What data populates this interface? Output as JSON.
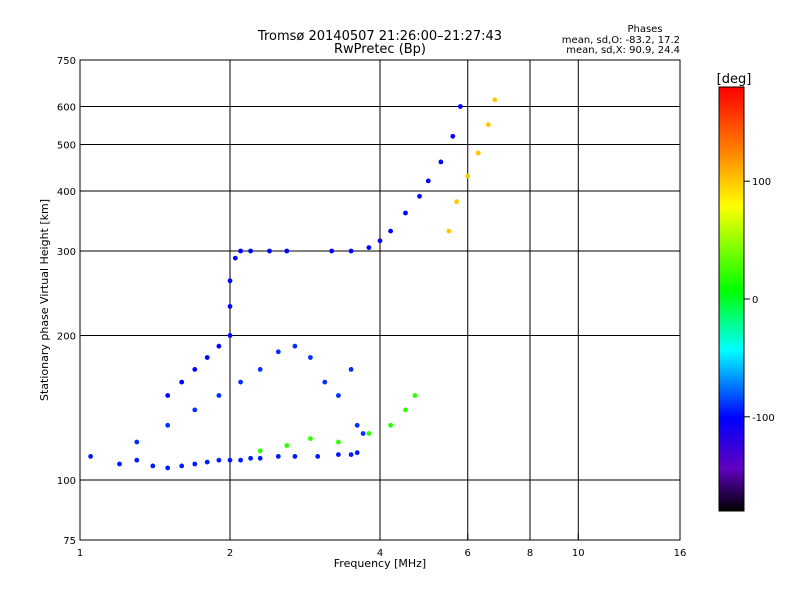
{
  "header": {
    "title_line1": "Tromsø 20140507 21:26:00–21:27:43",
    "title_line2": "RwPretec (Bp)",
    "phases_title": "Phases",
    "phases_line1": "mean, sd,O: -83.2, 17.2",
    "phases_line2": "mean, sd,X:  90.9, 24.4"
  },
  "chart_data": {
    "type": "scatter",
    "xlabel": "Frequency [MHz]",
    "ylabel": "Stationary phase Virtual Height [km]",
    "x_scale": "log",
    "y_scale": "log",
    "xlim": [
      1,
      16
    ],
    "ylim": [
      75,
      750
    ],
    "x_ticks": [
      1,
      2,
      4,
      6,
      8,
      10,
      16
    ],
    "x_tick_labels": [
      "1",
      "2",
      "4",
      "6",
      "8",
      "10",
      "16"
    ],
    "x_grid": [
      2,
      4,
      6,
      8,
      10
    ],
    "y_ticks": [
      75,
      100,
      200,
      300,
      400,
      500,
      600,
      750
    ],
    "y_tick_labels": [
      "75",
      "100",
      "200",
      "300",
      "400",
      "500",
      "600",
      "750"
    ],
    "y_grid": [
      100,
      200,
      300,
      400,
      500,
      600
    ],
    "grid": true,
    "colorbar": {
      "label": "[deg]",
      "range": [
        -180,
        180
      ],
      "ticks": [
        100,
        0,
        -100
      ],
      "tick_labels": [
        "100",
        "0",
        "-100"
      ],
      "colors": [
        "#ff0000",
        "#ff8000",
        "#ffff00",
        "#00ff00",
        "#00ffff",
        "#0000ff",
        "#6000c0",
        "#000000"
      ]
    },
    "series": [
      {
        "kind": "O-trace-low",
        "phase": -95,
        "points": [
          [
            1.05,
            112
          ],
          [
            1.2,
            108
          ],
          [
            1.3,
            110
          ],
          [
            1.4,
            107
          ],
          [
            1.5,
            106
          ],
          [
            1.6,
            107
          ],
          [
            1.7,
            108
          ],
          [
            1.8,
            109
          ],
          [
            1.9,
            110
          ],
          [
            2.0,
            110
          ],
          [
            2.1,
            110
          ],
          [
            2.2,
            111
          ],
          [
            2.3,
            111
          ],
          [
            2.5,
            112
          ],
          [
            2.7,
            112
          ],
          [
            3.0,
            112
          ],
          [
            3.3,
            113
          ],
          [
            3.5,
            113
          ],
          [
            3.6,
            114
          ]
        ]
      },
      {
        "kind": "O-cusp",
        "phase": -100,
        "points": [
          [
            1.5,
            150
          ],
          [
            1.6,
            160
          ],
          [
            1.7,
            170
          ],
          [
            1.8,
            180
          ],
          [
            1.9,
            190
          ],
          [
            2.0,
            200
          ],
          [
            2.0,
            230
          ],
          [
            2.0,
            260
          ],
          [
            2.05,
            290
          ],
          [
            2.1,
            300
          ],
          [
            2.2,
            300
          ],
          [
            2.4,
            300
          ],
          [
            2.6,
            300
          ],
          [
            3.2,
            300
          ],
          [
            3.5,
            300
          ],
          [
            3.8,
            305
          ],
          [
            4.0,
            315
          ],
          [
            4.2,
            330
          ],
          [
            4.5,
            360
          ],
          [
            4.8,
            390
          ],
          [
            5.0,
            420
          ],
          [
            5.3,
            460
          ],
          [
            5.6,
            520
          ],
          [
            5.8,
            600
          ]
        ]
      },
      {
        "kind": "O-diffuse",
        "phase": -90,
        "points": [
          [
            1.3,
            120
          ],
          [
            1.5,
            130
          ],
          [
            1.7,
            140
          ],
          [
            1.9,
            150
          ],
          [
            2.1,
            160
          ],
          [
            2.3,
            170
          ],
          [
            2.5,
            185
          ],
          [
            2.7,
            190
          ],
          [
            2.9,
            180
          ],
          [
            3.1,
            160
          ],
          [
            3.3,
            150
          ],
          [
            3.5,
            170
          ],
          [
            3.6,
            130
          ],
          [
            3.7,
            125
          ]
        ]
      },
      {
        "kind": "X-trace",
        "phase": 100,
        "points": [
          [
            5.5,
            330
          ],
          [
            5.7,
            380
          ],
          [
            6.0,
            430
          ],
          [
            6.3,
            480
          ],
          [
            6.6,
            550
          ],
          [
            6.8,
            620
          ]
        ]
      },
      {
        "kind": "mixed",
        "phase": 20,
        "points": [
          [
            2.3,
            115
          ],
          [
            2.6,
            118
          ],
          [
            2.9,
            122
          ],
          [
            3.3,
            120
          ],
          [
            3.8,
            125
          ],
          [
            4.2,
            130
          ],
          [
            4.5,
            140
          ],
          [
            4.7,
            150
          ]
        ]
      }
    ]
  }
}
